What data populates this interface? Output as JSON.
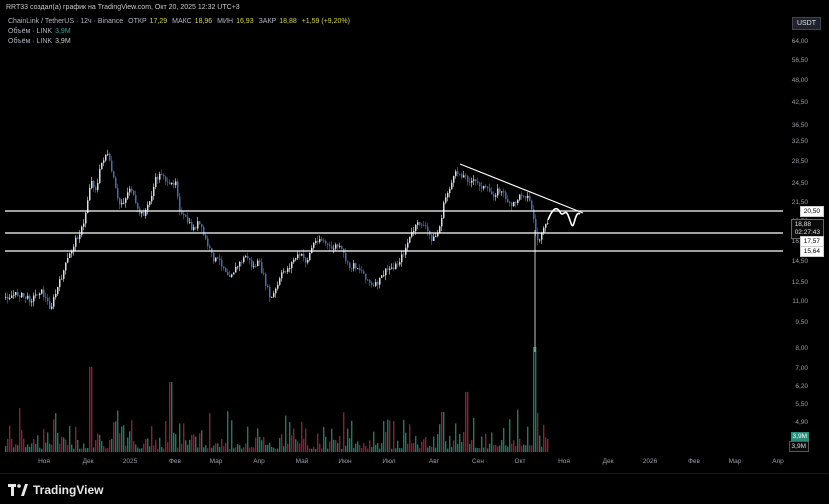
{
  "header": {
    "credit": "RRT33 создал(а) график на TradingView.com, Окт 20, 2025 12:32 UTC+3"
  },
  "legend": {
    "symbol": "ChainLink / TetherUS · 12ч · Binance",
    "open_label": "ОТКР",
    "open": "17,29",
    "high_label": "МАКС",
    "high": "18,96",
    "low_label": "МИН",
    "low": "16,93",
    "close_label": "ЗАКР",
    "close": "18,88",
    "change": "+1,59 (+9,20%)",
    "volume_label_1": "Объём · LINK",
    "volume_value_1": "3,9M",
    "volume_label_2": "Объём · LINK",
    "volume_value_2": "3,9M"
  },
  "currency": "USDT",
  "y_axis": {
    "ticks": [
      "64,00",
      "56,50",
      "48,00",
      "42,50",
      "36,50",
      "32,50",
      "28,50",
      "24,50",
      "21,50",
      "18,50",
      "16,50",
      "14,50",
      "12,50",
      "11,00",
      "9,50",
      "8,00",
      "7,00",
      "6,20",
      "5,50",
      "4,90",
      "4,30"
    ],
    "levels": [
      "20,50",
      "18,88",
      "02:27:43",
      "17,57",
      "15,64"
    ],
    "volume_boxes": [
      "3,9M",
      "3,9M"
    ]
  },
  "x_axis": {
    "ticks": [
      "Ноя",
      "Дек",
      "2025",
      "Фев",
      "Мар",
      "Апр",
      "Май",
      "Июн",
      "Июл",
      "Авг",
      "Сен",
      "Окт",
      "Ноя",
      "Дек",
      "2026",
      "Фев",
      "Мар",
      "Апр"
    ]
  },
  "footer": {
    "brand": "TradingView",
    "logo_icon": "tradingview-logo-icon"
  },
  "colors": {
    "background": "#000000",
    "candle_up": "#d8dde8",
    "candle_down": "#3f6fb5",
    "volume_up": "#2a8c78",
    "volume_down": "#9a2b3a",
    "level_lines": "#ffffff",
    "trend_line": "#ffffff",
    "currency_accent": "#d6d64a"
  }
}
